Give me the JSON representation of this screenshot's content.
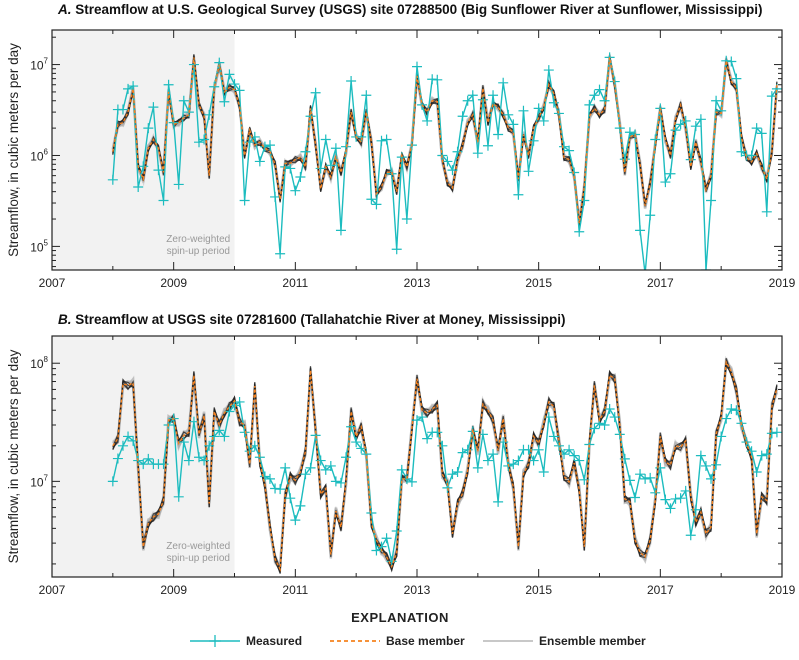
{
  "colors": {
    "measured": "#1cbcbf",
    "base": "#f5821f",
    "ensemble": "#222222",
    "ensemble_halo": "#9a9a9a",
    "spinup": "#f2f2f2"
  },
  "legend": {
    "title": "EXPLANATION",
    "items": [
      {
        "label": "Measured",
        "icon": "line-with-plus-marker"
      },
      {
        "label": "Base member",
        "icon": "dashed-line"
      },
      {
        "label": "Ensemble member",
        "icon": "gray-line"
      }
    ]
  },
  "chart_data": [
    {
      "type": "line",
      "y_scale": "log",
      "title_prefix": "A.",
      "title": "Streamflow at U.S. Geological Survey (USGS) site 07288500 (Big Sunflower River at Sunflower, Mississippi)",
      "ylabel": "Streamflow, in cubic meters per day",
      "xlabel": "",
      "xlim": [
        "2007-01",
        "2019-01"
      ],
      "ylim": [
        55000,
        24000000
      ],
      "x_ticks": [
        "2007",
        "2009",
        "2011",
        "2013",
        "2015",
        "2017",
        "2019"
      ],
      "y_ticks": [
        100000,
        1000000,
        10000000
      ],
      "spinup": {
        "range": [
          "2007-01",
          "2010-01"
        ],
        "label_lines": [
          "Zero-weighted",
          "spin-up period"
        ]
      },
      "measured": [
        540000.0,
        3200000.0,
        3200000.0,
        5400000.0,
        5800000.0,
        450000.0,
        760000.0,
        2000000.0,
        3400000.0,
        690000.0,
        320000.0,
        6000000.0,
        2300000.0,
        480000.0,
        4000000.0,
        3000000.0,
        10000000.0,
        1400000.0,
        1500000.0,
        2800000.0,
        5700000.0,
        10500000.0,
        3900000.0,
        7800000.0,
        6100000.0,
        5200000.0,
        320000.0,
        1400000.0,
        1600000.0,
        860000.0,
        1250000.0,
        1300000.0,
        350000.0,
        83000.0,
        750000.0,
        720000.0,
        410000.0,
        580000.0,
        1100000.0,
        2700000.0,
        4900000.0,
        720000.0,
        1500000.0,
        780000.0,
        1200000.0,
        150000.0,
        1250000.0,
        6600000.0,
        1600000.0,
        1600000.0,
        4600000.0,
        330000.0,
        290000.0,
        1450000.0,
        1500000.0,
        630000.0,
        93000.0,
        960000.0,
        200000.0,
        1300000.0,
        9500000.0,
        3600000.0,
        2400000.0,
        6900000.0,
        6800000.0,
        1000000.0,
        860000.0,
        690000.0,
        1100000.0,
        2700000.0,
        4000000.0,
        4600000.0,
        1060000.0,
        4100000.0,
        1280000.0,
        4600000.0,
        1700000.0,
        6300000.0,
        2800000.0,
        2200000.0,
        370000.0,
        3100000.0,
        670000.0,
        1450000.0,
        3300000.0,
        2400000.0,
        8700000.0,
        3800000.0,
        2900000.0,
        1250000.0,
        1130000.0,
        650000.0,
        145000.0,
        320000.0,
        3600000.0,
        4600000.0,
        5300000.0,
        4000000.0,
        12000000.0,
        6500000.0,
        2000000.0,
        910000.0,
        1800000.0,
        1700000.0,
        150000.0,
        50000.0,
        220000.0,
        1500000.0,
        3300000.0,
        510000.0,
        630000.0,
        1900000.0,
        2200000.0,
        2400000.0,
        900000.0,
        2100000.0,
        2500000.0,
        55000.0,
        320000.0,
        4000000.0,
        3100000.0,
        11000000.0,
        10800000.0,
        7000000.0,
        1100000.0,
        1000000.0,
        1000000.0,
        2000000.0,
        1750000.0,
        240000.0,
        4500000.0,
        5400000.0
      ],
      "base": [
        1100000.0,
        2200000.0,
        2300000.0,
        3000000.0,
        5400000.0,
        750000.0,
        550000.0,
        1200000.0,
        1500000.0,
        1200000.0,
        650000.0,
        5000000.0,
        2200000.0,
        2300000.0,
        2600000.0,
        2800000.0,
        12000000.0,
        3600000.0,
        2700000.0,
        600000.0,
        5500000.0,
        10000000.0,
        5000000.0,
        5600000.0,
        5300000.0,
        3500000.0,
        1000000.0,
        1900000.0,
        1300000.0,
        1400000.0,
        1200000.0,
        1100000.0,
        800000.0,
        330000.0,
        820000.0,
        820000.0,
        900000.0,
        950000.0,
        750000.0,
        3300000.0,
        1300000.0,
        430000.0,
        750000.0,
        580000.0,
        960000.0,
        650000.0,
        1100000.0,
        3000000.0,
        1600000.0,
        1400000.0,
        3000000.0,
        1400000.0,
        380000.0,
        450000.0,
        650000.0,
        660000.0,
        400000.0,
        1000000.0,
        750000.0,
        1300000.0,
        7500000.0,
        3600000.0,
        3000000.0,
        4000000.0,
        3900000.0,
        900000.0,
        500000.0,
        440000.0,
        900000.0,
        1300000.0,
        2300000.0,
        2800000.0,
        1400000.0,
        5500000.0,
        2300000.0,
        3700000.0,
        3400000.0,
        2800000.0,
        2000000.0,
        1800000.0,
        550000.0,
        1700000.0,
        1000000.0,
        2000000.0,
        2600000.0,
        3400000.0,
        6000000.0,
        4800000.0,
        2800000.0,
        950000.0,
        900000.0,
        600000.0,
        180000.0,
        450000.0,
        2700000.0,
        3300000.0,
        2800000.0,
        3200000.0,
        12000000.0,
        6000000.0,
        2200000.0,
        650000.0,
        1600000.0,
        1700000.0,
        800000.0,
        280000.0,
        500000.0,
        1300000.0,
        3300000.0,
        1500000.0,
        1000000.0,
        2500000.0,
        3600000.0,
        2000000.0,
        750000.0,
        1400000.0,
        850000.0,
        420000.0,
        600000.0,
        3000000.0,
        2900000.0,
        11000000.0,
        6500000.0,
        5500000.0,
        1600000.0,
        950000.0,
        850000.0,
        1050000.0,
        750000.0,
        550000.0,
        1100000.0,
        6000000.0
      ]
    },
    {
      "type": "line",
      "y_scale": "log",
      "title_prefix": "B.",
      "title": "Streamflow at USGS site 07281600 (Tallahatchie River at Money, Mississippi)",
      "ylabel": "Streamflow, in cubic meters per day",
      "xlabel": "",
      "xlim": [
        "2007-01",
        "2019-01"
      ],
      "ylim": [
        1550000,
        170000000
      ],
      "x_ticks": [
        "2007",
        "2009",
        "2011",
        "2013",
        "2015",
        "2017",
        "2019"
      ],
      "y_ticks": [
        10000000,
        100000000
      ],
      "spinup": {
        "range": [
          "2007-01",
          "2010-01"
        ],
        "label_lines": [
          "Zero-weighted",
          "spin-up period"
        ]
      },
      "measured": [
        10000000.0,
        15600000.0,
        20000000.0,
        24000000.0,
        22000000.0,
        15000000.0,
        14000000.0,
        15500000.0,
        14000000.0,
        14000000.0,
        14000000.0,
        30000000.0,
        34000000.0,
        7400000.0,
        21500000.0,
        15000000.0,
        32000000.0,
        16000000.0,
        15000000.0,
        20000000.0,
        24000000.0,
        27000000.0,
        24000000.0,
        39000000.0,
        44000000.0,
        47000000.0,
        26000000.0,
        18000000.0,
        20000000.0,
        16000000.0,
        11000000.0,
        10500000.0,
        8700000.0,
        8600000.0,
        13000000.0,
        7200000.0,
        4700000.0,
        6200000.0,
        11500000.0,
        13000000.0,
        24500000.0,
        15000000.0,
        12500000.0,
        13500000.0,
        10000000.0,
        9700000.0,
        16000000.0,
        29000000.0,
        21500000.0,
        19000000.0,
        17000000.0,
        5400000.0,
        2600000.0,
        2800000.0,
        3300000.0,
        2100000.0,
        3800000.0,
        12500000.0,
        10500000.0,
        9900000.0,
        33000000.0,
        35000000.0,
        23000000.0,
        26000000.0,
        26000000.0,
        20000000.0,
        8800000.0,
        11500000.0,
        12000000.0,
        17500000.0,
        18500000.0,
        26500000.0,
        13000000.0,
        25000000.0,
        15000000.0,
        17000000.0,
        6700000.0,
        21500000.0,
        13500000.0,
        14000000.0,
        15000000.0,
        18500000.0,
        18500000.0,
        15000000.0,
        18500000.0,
        12000000.0,
        35000000.0,
        24000000.0,
        20000000.0,
        17000000.0,
        18500000.0,
        16500000.0,
        15000000.0,
        10300000.0,
        20500000.0,
        28000000.0,
        31000000.0,
        30000000.0,
        41000000.0,
        35000000.0,
        25000000.0,
        15500000.0,
        10200000.0,
        7300000.0,
        11500000.0,
        10500000.0,
        10700000.0,
        8000000.0,
        13000000.0,
        7000000.0,
        5900000.0,
        7100000.0,
        7200000.0,
        8300000.0,
        3500000.0,
        5750000.0,
        16500000.0,
        13500000.0,
        10500000.0,
        13800000.0,
        24000000.0,
        34000000.0,
        41000000.0,
        40000000.0,
        31000000.0,
        21500000.0,
        18000000.0,
        12000000.0,
        16500000.0,
        17000000.0,
        25500000.0,
        26000000.0
      ],
      "base": [
        20000000.0,
        23000000.0,
        67000000.0,
        65000000.0,
        68000000.0,
        13000000.0,
        2800000.0,
        4400000.0,
        5000000.0,
        5300000.0,
        6900000.0,
        33000000.0,
        34000000.0,
        21000000.0,
        24500000.0,
        26000000.0,
        79000000.0,
        25000000.0,
        36000000.0,
        6500000.0,
        39000000.0,
        30000000.0,
        38000000.0,
        43000000.0,
        48000000.0,
        32000000.0,
        30000000.0,
        14000000.0,
        64000000.0,
        14500000.0,
        9300000.0,
        4100000.0,
        2200000.0,
        1800000.0,
        7600000.0,
        11000000.0,
        10200000.0,
        12000000.0,
        18000000.0,
        87000000.0,
        27000000.0,
        7800000.0,
        8700000.0,
        2400000.0,
        5600000.0,
        4100000.0,
        9900000.0,
        39000000.0,
        24000000.0,
        29000000.0,
        17000000.0,
        4400000.0,
        3200000.0,
        2600000.0,
        2300000.0,
        1900000.0,
        2500000.0,
        10500000.0,
        10500000.0,
        28000000.0,
        74000000.0,
        40000000.0,
        38000000.0,
        41000000.0,
        44000000.0,
        11500000.0,
        9700000.0,
        3600000.0,
        6500000.0,
        7900000.0,
        12400000.0,
        27500000.0,
        18000000.0,
        45000000.0,
        40000000.0,
        33000000.0,
        18300000.0,
        34000000.0,
        14000000.0,
        9000000.0,
        2800000.0,
        11600000.0,
        14000000.0,
        24000000.0,
        21000000.0,
        31000000.0,
        47000000.0,
        43000000.0,
        22000000.0,
        11000000.0,
        9900000.0,
        14300000.0,
        8500000.0,
        2800000.0,
        21000000.0,
        65000000.0,
        33000000.0,
        39000000.0,
        79000000.0,
        74000000.0,
        30000000.0,
        7100000.0,
        6700000.0,
        3200000.0,
        2500000.0,
        2300000.0,
        3200000.0,
        6900000.0,
        24000000.0,
        14600000.0,
        13700000.0,
        20000000.0,
        19500000.0,
        22000000.0,
        7400000.0,
        4500000.0,
        5500000.0,
        3600000.0,
        4100000.0,
        25000000.0,
        35000000.0,
        102000000.0,
        85000000.0,
        59000000.0,
        30000000.0,
        21000000.0,
        16000000.0,
        3600000.0,
        7400000.0,
        6900000.0,
        43000000.0,
        61000000.0
      ]
    }
  ],
  "x_dates_first": "2008-01",
  "x_dates_step": "monthly"
}
